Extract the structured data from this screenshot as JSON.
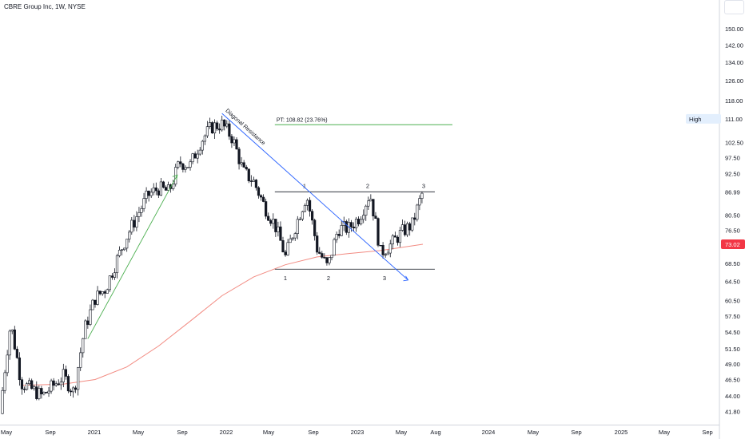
{
  "header": {
    "title": "CBRE Group Inc, 1W, NYSE"
  },
  "chart_data": {
    "type": "candlestick",
    "symbol": "CBRE",
    "interval": "1W",
    "exchange": "NYSE",
    "ylim": [
      40.0,
      165.0
    ],
    "log_scale": true,
    "grid": false,
    "y_ticks": [
      150.0,
      142.0,
      134.0,
      126.0,
      118.0,
      111.0,
      102.5,
      97.5,
      92.5,
      86.99,
      80.5,
      76.5,
      73.02,
      68.5,
      64.5,
      60.5,
      57.5,
      54.5,
      51.5,
      49.0,
      46.5,
      44.0,
      41.8
    ],
    "y_tick_labels": [
      "150.00",
      "142.00",
      "134.00",
      "126.00",
      "118.00",
      "102.50",
      "97.50",
      "92.50",
      "86.99",
      "80.50",
      "76.50",
      "68.50",
      "64.50",
      "60.50",
      "57.50",
      "54.50",
      "51.50",
      "49.00",
      "46.50",
      "44.00",
      "41.80"
    ],
    "x_labels": [
      "May",
      "Sep",
      "2021",
      "May",
      "Sep",
      "2022",
      "May",
      "Sep",
      "2023",
      "May",
      "Aug",
      "2024",
      "May",
      "Sep",
      "2025",
      "May",
      "Sep"
    ],
    "price_labels": {
      "high": {
        "label": "High",
        "value": "111.00"
      },
      "last": {
        "value": "73.02"
      }
    },
    "moving_average": {
      "color": "#f28b82",
      "points": [
        [
          "2020-05",
          45.6
        ],
        [
          "2020-09",
          45.8
        ],
        [
          "2020-12",
          46.5
        ],
        [
          "2021-03",
          48.5
        ],
        [
          "2021-06",
          52.0
        ],
        [
          "2021-09",
          56.5
        ],
        [
          "2021-12",
          61.5
        ],
        [
          "2022-03",
          65.5
        ],
        [
          "2022-06",
          68.2
        ],
        [
          "2022-09",
          70.0
        ],
        [
          "2022-12",
          70.8
        ],
        [
          "2023-03",
          71.5
        ],
        [
          "2023-07",
          73.02
        ]
      ]
    },
    "anchors": [
      [
        "2020-03",
        41.5
      ],
      [
        "2020-04",
        56.0
      ],
      [
        "2020-05",
        46.0
      ],
      [
        "2020-07",
        44.0
      ],
      [
        "2020-09",
        47.0
      ],
      [
        "2020-10",
        44.5
      ],
      [
        "2020-11",
        55.0
      ],
      [
        "2020-12",
        61.0
      ],
      [
        "2021-01",
        63.0
      ],
      [
        "2021-03",
        75.0
      ],
      [
        "2021-05",
        86.0
      ],
      [
        "2021-06",
        88.0
      ],
      [
        "2021-07",
        87.0
      ],
      [
        "2021-08",
        96.0
      ],
      [
        "2021-09",
        95.0
      ],
      [
        "2021-10",
        103.0
      ],
      [
        "2021-11",
        108.0
      ],
      [
        "2021-12",
        109.0
      ],
      [
        "2022-01",
        104.0
      ],
      [
        "2022-02",
        93.0
      ],
      [
        "2022-03",
        90.0
      ],
      [
        "2022-04",
        83.0
      ],
      [
        "2022-05",
        78.0
      ],
      [
        "2022-06",
        70.0
      ],
      [
        "2022-07",
        78.0
      ],
      [
        "2022-08",
        86.0
      ],
      [
        "2022-09",
        72.0
      ],
      [
        "2022-10",
        67.5
      ],
      [
        "2022-11",
        77.0
      ],
      [
        "2022-12",
        77.0
      ],
      [
        "2023-01",
        80.0
      ],
      [
        "2023-02",
        86.5
      ],
      [
        "2023-03",
        71.0
      ],
      [
        "2023-04",
        73.0
      ],
      [
        "2023-05",
        76.0
      ],
      [
        "2023-06",
        78.0
      ],
      [
        "2023-07",
        87.0
      ]
    ],
    "drawings": {
      "rectangle": {
        "top": 86.99,
        "bottom": 67.2,
        "from": "2022-05",
        "to": "2023-07"
      },
      "rectangle_labels": [
        "1",
        "2",
        "3",
        "1",
        "2",
        "3"
      ],
      "target": {
        "label": "PT: 108.82 (23.76%)",
        "value": 108.82,
        "color": "#4caf50"
      },
      "trend_up": {
        "from": [
          "2020-11",
          55.0
        ],
        "to": [
          "2021-08",
          92.0
        ],
        "color": "#4caf50"
      },
      "diagonal": {
        "label": "Diagonal  Resistance",
        "from": [
          "2021-12",
          113.0
        ],
        "to": [
          "2023-05",
          65.5
        ],
        "color": "#2962ff"
      }
    }
  }
}
